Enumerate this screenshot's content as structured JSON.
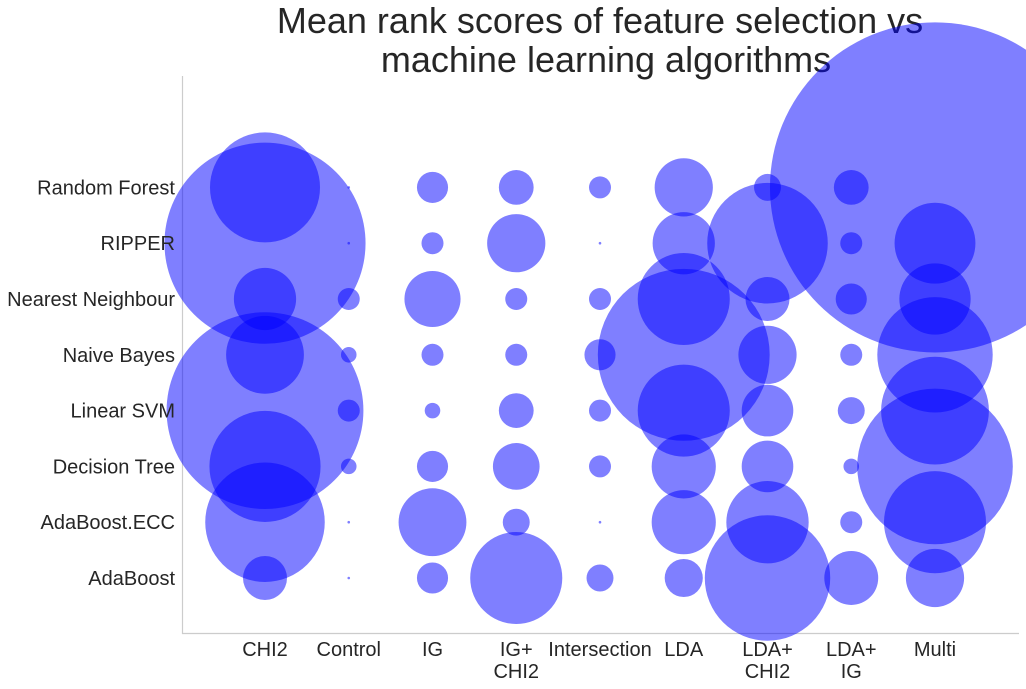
{
  "chart_data": {
    "type": "scatter",
    "title": [
      "Mean rank scores of feature selection vs",
      "machine learning algorithms"
    ],
    "xlabel": "",
    "ylabel": "",
    "grid": false,
    "x_categories": [
      [
        "CHI2"
      ],
      [
        "Control"
      ],
      [
        "IG"
      ],
      [
        "IG+",
        "CHI2"
      ],
      [
        "Intersection"
      ],
      [
        "LDA"
      ],
      [
        "LDA+",
        "CHI2"
      ],
      [
        "LDA+",
        "IG"
      ],
      [
        "Multi"
      ]
    ],
    "y_categories": [
      "AdaBoost",
      "AdaBoost.ECC",
      "Decision Tree",
      "Linear SVM",
      "Naive Bayes",
      "Nearest Neighbour",
      "RIPPER",
      "Random Forest"
    ],
    "bubble_color": "#0000ff",
    "bubble_opacity": 0.5,
    "size_scale": "bubble area proportional to mean rank score",
    "series": [
      {
        "values": [
          0.08,
          0.0,
          0.04,
          0.35,
          0.03,
          0.06,
          0.65,
          0.12,
          0.14
        ]
      },
      {
        "values": [
          0.59,
          0.0,
          0.19,
          0.03,
          0.0,
          0.17,
          0.28,
          0.02,
          0.43
        ]
      },
      {
        "values": [
          0.51,
          0.01,
          0.04,
          0.09,
          0.02,
          0.17,
          0.11,
          0.01,
          1.0
        ]
      },
      {
        "values": [
          1.6,
          0.02,
          0.01,
          0.05,
          0.02,
          0.35,
          0.11,
          0.03,
          0.48
        ]
      },
      {
        "values": [
          0.25,
          0.01,
          0.02,
          0.02,
          0.04,
          1.22,
          0.14,
          0.02,
          0.55
        ]
      },
      {
        "values": [
          0.16,
          0.02,
          0.13,
          0.02,
          0.02,
          0.35,
          0.08,
          0.04,
          0.21
        ]
      },
      {
        "values": [
          1.67,
          0.0,
          0.02,
          0.14,
          0.0,
          0.16,
          0.6,
          0.02,
          0.27
        ]
      },
      {
        "values": [
          0.5,
          0.0,
          0.04,
          0.05,
          0.02,
          0.14,
          0.03,
          0.05,
          4.5
        ]
      }
    ]
  }
}
